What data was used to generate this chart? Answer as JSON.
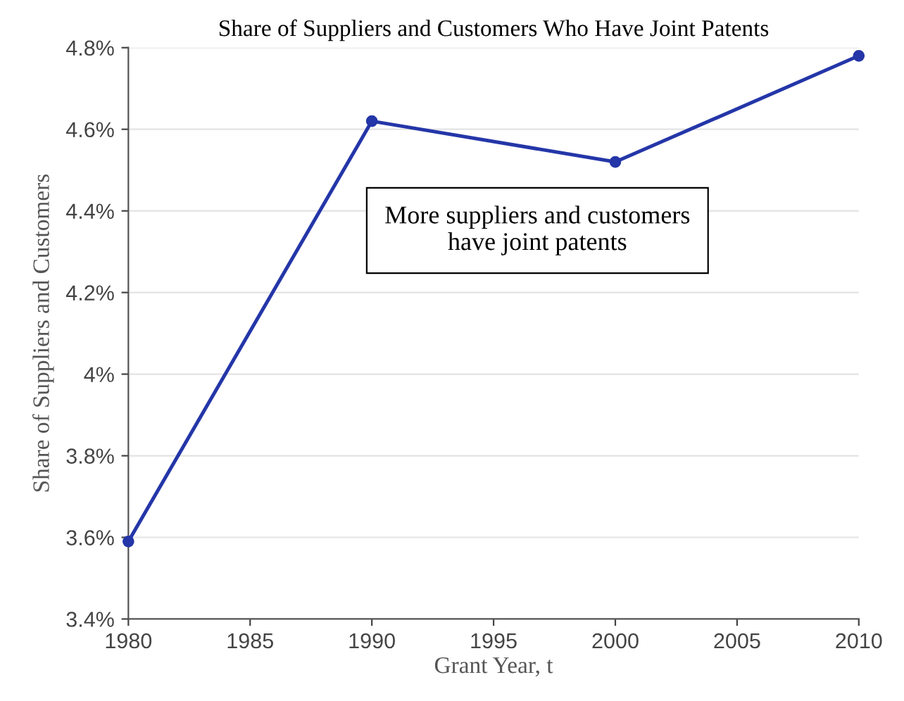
{
  "chart_data": {
    "type": "line",
    "title": "Share of Suppliers and Customers Who Have Joint Patents",
    "xlabel": "Grant Year, t",
    "ylabel": "Share of Suppliers and Customers",
    "x": [
      1980,
      1990,
      2000,
      2010
    ],
    "series": [
      {
        "color": "#2436a8",
        "values": [
          3.59,
          4.62,
          4.52,
          4.78
        ]
      }
    ],
    "xlim": [
      1980,
      2010
    ],
    "xticks": [
      1980,
      1985,
      1990,
      1995,
      2000,
      2005,
      2010
    ],
    "ylim": [
      3.4,
      4.8
    ],
    "yticks": [
      {
        "value": 3.4,
        "label": "3.4%"
      },
      {
        "value": 3.6,
        "label": "3.6%"
      },
      {
        "value": 3.8,
        "label": "3.8%"
      },
      {
        "value": 4.0,
        "label": "4%"
      },
      {
        "value": 4.2,
        "label": "4.2%"
      },
      {
        "value": 4.4,
        "label": "4.4%"
      },
      {
        "value": 4.6,
        "label": "4.6%"
      },
      {
        "value": 4.8,
        "label": "4.8%"
      }
    ],
    "grid": "y",
    "marker": "circle",
    "line_style": "solid",
    "annotations": [
      "More suppliers and customers\nhave joint patents"
    ]
  }
}
